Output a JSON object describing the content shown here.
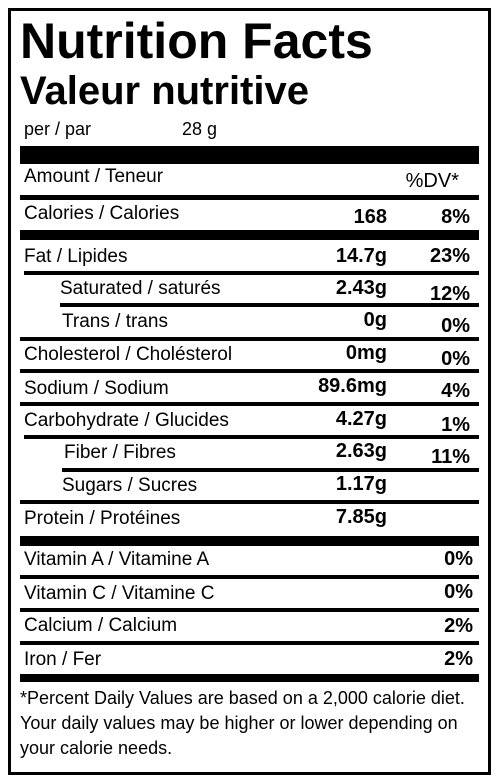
{
  "title": "Nutrition Facts",
  "subtitle": "Valeur nutritive",
  "serving": {
    "label": "per / par",
    "amount": "28 g"
  },
  "header": {
    "amount_label": "Amount / Teneur",
    "dv_label": "%DV*"
  },
  "rows": [
    {
      "label": "Calories / Calories",
      "amount": "168",
      "dv": "8%"
    },
    {
      "label": "Fat / Lipides",
      "amount": "14.7g",
      "dv": "23%"
    },
    {
      "label": "Saturated / saturés",
      "amount": "2.43g",
      "dv": "12%"
    },
    {
      "label": "Trans / trans",
      "amount": "0g",
      "dv": "0%"
    },
    {
      "label": "Cholesterol / Cholésterol",
      "amount": "0mg",
      "dv": "0%"
    },
    {
      "label": "Sodium / Sodium",
      "amount": "89.6mg",
      "dv": "4%"
    },
    {
      "label": "Carbohydrate / Glucides",
      "amount": "4.27g",
      "dv": "1%"
    },
    {
      "label": "Fiber / Fibres",
      "amount": "2.63g",
      "dv": "11%"
    },
    {
      "label": "Sugars / Sucres",
      "amount": "1.17g",
      "dv": ""
    },
    {
      "label": "Protein / Protéines",
      "amount": "7.85g",
      "dv": ""
    }
  ],
  "vitamins": [
    {
      "label": "Vitamin A / Vitamine A",
      "dv": "0%"
    },
    {
      "label": "Vitamin C / Vitamine C",
      "dv": "0%"
    },
    {
      "label": "Calcium / Calcium",
      "dv": "2%"
    },
    {
      "label": "Iron / Fer",
      "dv": "2%"
    }
  ],
  "footnote": "*Percent Daily Values are based on a 2,000 calorie diet.  Your daily values may be higher or lower depending on your calorie needs."
}
